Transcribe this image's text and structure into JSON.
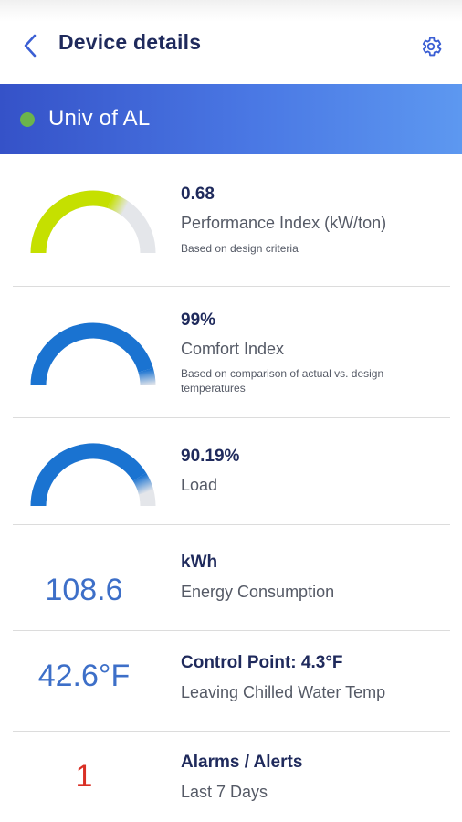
{
  "header": {
    "title": "Device details",
    "back_icon": "chevron-left-icon",
    "settings_icon": "gear-icon",
    "icon_color": "#3b5fd4"
  },
  "device": {
    "name": "Univ of AL",
    "status_color": "#6bb44c"
  },
  "metrics": {
    "performance": {
      "value": "0.68",
      "label": "Performance Index (kW/ton)",
      "note": "Based on design criteria",
      "gauge_fraction": 0.68,
      "gauge_color": "#c5e000"
    },
    "comfort": {
      "value": "99%",
      "label": "Comfort Index",
      "note": "Based on comparison of actual vs. design temperatures",
      "gauge_fraction": 0.99,
      "gauge_color": "#1a73d1"
    },
    "load": {
      "value": "90.19%",
      "label": "Load",
      "gauge_fraction": 0.9019,
      "gauge_color": "#1a73d1"
    },
    "energy": {
      "big_value": "108.6",
      "title": "kWh",
      "label": "Energy Consumption"
    },
    "chilled_water": {
      "big_value": "42.6°F",
      "title": "Control Point: 4.3°F",
      "label": "Leaving Chilled Water Temp"
    },
    "alarms": {
      "big_value": "1",
      "title": "Alarms / Alerts",
      "label": "Last 7 Days",
      "value_color": "#d93025"
    }
  }
}
